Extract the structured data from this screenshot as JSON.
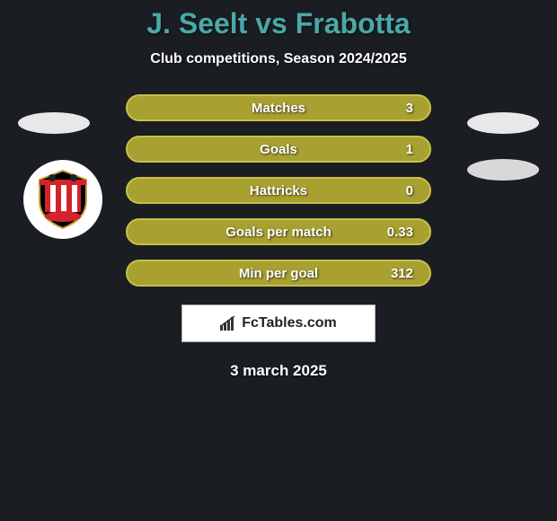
{
  "header": {
    "title": "J. Seelt vs Frabotta",
    "subtitle": "Club competitions, Season 2024/2025",
    "title_color": "#4aa8a8"
  },
  "stats": [
    {
      "label": "Matches",
      "value": "3"
    },
    {
      "label": "Goals",
      "value": "1"
    },
    {
      "label": "Hattricks",
      "value": "0"
    },
    {
      "label": "Goals per match",
      "value": "0.33"
    },
    {
      "label": "Min per goal",
      "value": "312"
    }
  ],
  "brand": {
    "text": "FcTables.com"
  },
  "date": "3 march 2025",
  "colors": {
    "background": "#1a1d21",
    "pill_bg": "#a8a030",
    "pill_border": "#c8c048",
    "text": "#ffffff"
  },
  "club": {
    "name": "sunderland-badge",
    "stripe_colors": [
      "#d4232a",
      "#ffffff"
    ],
    "shield_bg": "#000000",
    "banner_color": "#d4232a"
  }
}
